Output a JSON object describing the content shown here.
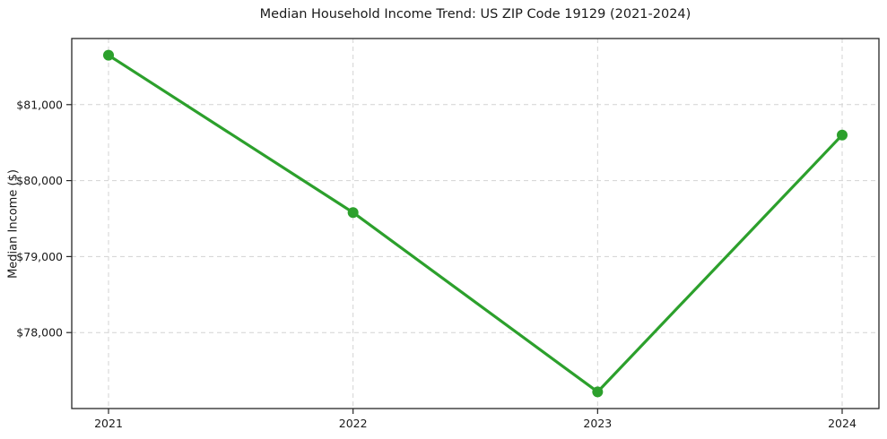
{
  "chart_data": {
    "type": "line",
    "title": "Median Household Income Trend: US ZIP Code 19129 (2021-2024)",
    "xlabel": "",
    "ylabel": "Median Income ($)",
    "categories": [
      "2021",
      "2022",
      "2023",
      "2024"
    ],
    "series": [
      {
        "name": "Median Household Income",
        "values": [
          81650,
          79580,
          77220,
          80600
        ]
      }
    ],
    "yticks": {
      "values": [
        78000,
        79000,
        80000,
        81000
      ],
      "labels": [
        "$78,000",
        "$79,000",
        "$80,000",
        "$81,000"
      ]
    },
    "ylim": [
      77000,
      81870
    ],
    "grid": "dashed, both axes",
    "legend": "none",
    "marker": "filled circle",
    "colors": {
      "line": "#2ca02c",
      "marker": "#2ca02c",
      "grid": "#d3d3d3",
      "axis": "#262626",
      "text": "#1a1a1a",
      "background": "#ffffff"
    }
  }
}
